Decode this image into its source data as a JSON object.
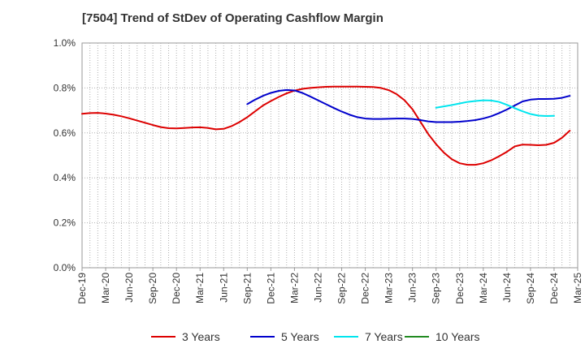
{
  "chart_data": {
    "type": "line",
    "title": "[7504]  Trend of StDev of Operating Cashflow Margin",
    "xlabel": "",
    "ylabel": "",
    "ylim": [
      0,
      1.0
    ],
    "y_ticks": [
      "0.0%",
      "0.2%",
      "0.4%",
      "0.6%",
      "0.8%",
      "1.0%"
    ],
    "x_range": [
      "2019-12",
      "2025-03"
    ],
    "x_ticks": [
      "Dec-19",
      "Mar-20",
      "Jun-20",
      "Sep-20",
      "Dec-20",
      "Mar-21",
      "Jun-21",
      "Sep-21",
      "Dec-21",
      "Mar-22",
      "Jun-22",
      "Sep-22",
      "Dec-22",
      "Mar-23",
      "Jun-23",
      "Sep-23",
      "Dec-23",
      "Mar-24",
      "Jun-24",
      "Sep-24",
      "Dec-24",
      "Mar-25"
    ],
    "grid": true,
    "legend_position": "bottom",
    "series": [
      {
        "name": "3 Years",
        "color": "#dd0000",
        "points": [
          [
            "2019-12",
            0.685
          ],
          [
            "2020-01",
            0.688
          ],
          [
            "2020-02",
            0.689
          ],
          [
            "2020-03",
            0.686
          ],
          [
            "2020-04",
            0.681
          ],
          [
            "2020-05",
            0.674
          ],
          [
            "2020-06",
            0.665
          ],
          [
            "2020-07",
            0.655
          ],
          [
            "2020-08",
            0.645
          ],
          [
            "2020-09",
            0.635
          ],
          [
            "2020-10",
            0.626
          ],
          [
            "2020-11",
            0.621
          ],
          [
            "2020-12",
            0.62
          ],
          [
            "2021-01",
            0.622
          ],
          [
            "2021-02",
            0.624
          ],
          [
            "2021-03",
            0.625
          ],
          [
            "2021-04",
            0.622
          ],
          [
            "2021-05",
            0.616
          ],
          [
            "2021-06",
            0.618
          ],
          [
            "2021-07",
            0.63
          ],
          [
            "2021-08",
            0.648
          ],
          [
            "2021-09",
            0.67
          ],
          [
            "2021-10",
            0.696
          ],
          [
            "2021-11",
            0.722
          ],
          [
            "2021-12",
            0.742
          ],
          [
            "2022-01",
            0.76
          ],
          [
            "2022-02",
            0.776
          ],
          [
            "2022-03",
            0.788
          ],
          [
            "2022-04",
            0.796
          ],
          [
            "2022-05",
            0.8
          ],
          [
            "2022-06",
            0.803
          ],
          [
            "2022-07",
            0.805
          ],
          [
            "2022-08",
            0.806
          ],
          [
            "2022-09",
            0.806
          ],
          [
            "2022-10",
            0.806
          ],
          [
            "2022-11",
            0.806
          ],
          [
            "2022-12",
            0.805
          ],
          [
            "2023-01",
            0.804
          ],
          [
            "2023-02",
            0.8
          ],
          [
            "2023-03",
            0.79
          ],
          [
            "2023-04",
            0.772
          ],
          [
            "2023-05",
            0.745
          ],
          [
            "2023-06",
            0.705
          ],
          [
            "2023-07",
            0.65
          ],
          [
            "2023-08",
            0.595
          ],
          [
            "2023-09",
            0.55
          ],
          [
            "2023-10",
            0.512
          ],
          [
            "2023-11",
            0.483
          ],
          [
            "2023-12",
            0.465
          ],
          [
            "2024-01",
            0.458
          ],
          [
            "2024-02",
            0.458
          ],
          [
            "2024-03",
            0.465
          ],
          [
            "2024-04",
            0.478
          ],
          [
            "2024-05",
            0.496
          ],
          [
            "2024-06",
            0.516
          ],
          [
            "2024-07",
            0.54
          ],
          [
            "2024-08",
            0.548
          ],
          [
            "2024-09",
            0.547
          ],
          [
            "2024-10",
            0.545
          ],
          [
            "2024-11",
            0.547
          ],
          [
            "2024-12",
            0.556
          ],
          [
            "2025-01",
            0.578
          ],
          [
            "2025-02",
            0.61
          ]
        ]
      },
      {
        "name": "5 Years",
        "color": "#0000cc",
        "points": [
          [
            "2021-09",
            0.728
          ],
          [
            "2021-10",
            0.748
          ],
          [
            "2021-11",
            0.765
          ],
          [
            "2021-12",
            0.778
          ],
          [
            "2022-01",
            0.787
          ],
          [
            "2022-02",
            0.791
          ],
          [
            "2022-03",
            0.789
          ],
          [
            "2022-04",
            0.778
          ],
          [
            "2022-05",
            0.762
          ],
          [
            "2022-06",
            0.745
          ],
          [
            "2022-07",
            0.728
          ],
          [
            "2022-08",
            0.711
          ],
          [
            "2022-09",
            0.695
          ],
          [
            "2022-10",
            0.681
          ],
          [
            "2022-11",
            0.67
          ],
          [
            "2022-12",
            0.664
          ],
          [
            "2023-01",
            0.662
          ],
          [
            "2023-02",
            0.662
          ],
          [
            "2023-03",
            0.663
          ],
          [
            "2023-04",
            0.664
          ],
          [
            "2023-05",
            0.664
          ],
          [
            "2023-06",
            0.662
          ],
          [
            "2023-07",
            0.657
          ],
          [
            "2023-08",
            0.651
          ],
          [
            "2023-09",
            0.648
          ],
          [
            "2023-10",
            0.648
          ],
          [
            "2023-11",
            0.648
          ],
          [
            "2023-12",
            0.65
          ],
          [
            "2024-01",
            0.653
          ],
          [
            "2024-02",
            0.657
          ],
          [
            "2024-03",
            0.664
          ],
          [
            "2024-04",
            0.674
          ],
          [
            "2024-05",
            0.688
          ],
          [
            "2024-06",
            0.704
          ],
          [
            "2024-07",
            0.722
          ],
          [
            "2024-08",
            0.74
          ],
          [
            "2024-09",
            0.748
          ],
          [
            "2024-10",
            0.751
          ],
          [
            "2024-11",
            0.751
          ],
          [
            "2024-12",
            0.752
          ],
          [
            "2025-01",
            0.756
          ],
          [
            "2025-02",
            0.765
          ]
        ]
      },
      {
        "name": "7 Years",
        "color": "#00e5ee",
        "points": [
          [
            "2023-09",
            0.712
          ],
          [
            "2023-10",
            0.718
          ],
          [
            "2023-11",
            0.724
          ],
          [
            "2023-12",
            0.731
          ],
          [
            "2024-01",
            0.738
          ],
          [
            "2024-02",
            0.742
          ],
          [
            "2024-03",
            0.745
          ],
          [
            "2024-04",
            0.744
          ],
          [
            "2024-05",
            0.738
          ],
          [
            "2024-06",
            0.725
          ],
          [
            "2024-07",
            0.71
          ],
          [
            "2024-08",
            0.696
          ],
          [
            "2024-09",
            0.684
          ],
          [
            "2024-10",
            0.677
          ],
          [
            "2024-11",
            0.675
          ],
          [
            "2024-12",
            0.676
          ]
        ]
      },
      {
        "name": "10 Years",
        "color": "#228b22",
        "points": []
      }
    ]
  }
}
